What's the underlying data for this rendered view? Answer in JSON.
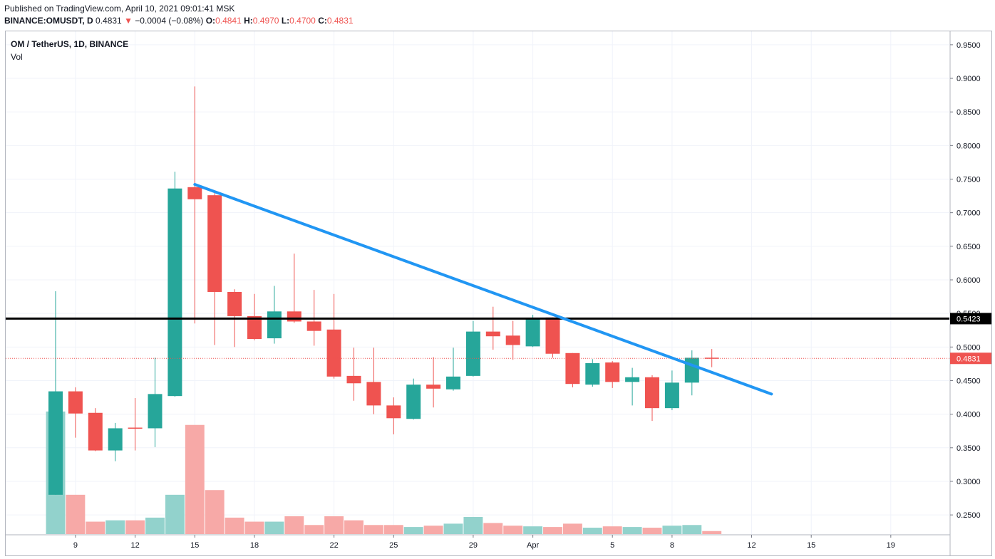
{
  "header": {
    "published": "Published on TradingView.com, April 10, 2021 09:01:41 MSK",
    "symbol_line": "BINANCE:OMUSDT, D",
    "last": "0.4831",
    "arrow": "▼",
    "change": "−0.0004 (−0.08%)",
    "o_label": "O:",
    "o_val": "0.4841",
    "h_label": "H:",
    "h_val": "0.4970",
    "l_label": "L:",
    "l_val": "0.4700",
    "c_label": "C:",
    "c_val": "0.4831"
  },
  "legend": {
    "title": "OM / TetherUS, 1D, BINANCE",
    "volume": "Vol"
  },
  "colors": {
    "up": "#26a69a",
    "down": "#ef5350",
    "vol_up": "#92d2cc",
    "vol_down": "#f7a9a7",
    "trendline": "#2196f3",
    "hline": "#000000",
    "grid": "#f0f3fa"
  },
  "chart_data": {
    "type": "candlestick",
    "price_axis_ticks": [
      "0.9500",
      "0.9000",
      "0.8500",
      "0.8000",
      "0.7500",
      "0.7000",
      "0.6500",
      "0.6000",
      "0.5500",
      "0.5000",
      "0.4500",
      "0.4000",
      "0.3500",
      "0.3000",
      "0.2500"
    ],
    "ylim": [
      0.2215,
      0.97
    ],
    "x_ticks": [
      {
        "label": "9",
        "i": 1
      },
      {
        "label": "12",
        "i": 4
      },
      {
        "label": "15",
        "i": 7
      },
      {
        "label": "18",
        "i": 10
      },
      {
        "label": "22",
        "i": 14
      },
      {
        "label": "25",
        "i": 17
      },
      {
        "label": "29",
        "i": 21
      },
      {
        "label": "Apr",
        "i": 24
      },
      {
        "label": "5",
        "i": 28
      },
      {
        "label": "8",
        "i": 31
      },
      {
        "label": "12",
        "i": 35
      },
      {
        "label": "15",
        "i": 38
      },
      {
        "label": "19",
        "i": 42
      }
    ],
    "candles": [
      {
        "o": 0.28,
        "h": 0.583,
        "l": 0.28,
        "c": 0.434,
        "v": 0.404
      },
      {
        "o": 0.434,
        "h": 0.44,
        "l": 0.365,
        "c": 0.401,
        "v": 0.28
      },
      {
        "o": 0.402,
        "h": 0.409,
        "l": 0.345,
        "c": 0.346,
        "v": 0.24
      },
      {
        "o": 0.346,
        "h": 0.387,
        "l": 0.33,
        "c": 0.379,
        "v": 0.242
      },
      {
        "o": 0.38,
        "h": 0.424,
        "l": 0.346,
        "c": 0.379,
        "v": 0.242
      },
      {
        "o": 0.379,
        "h": 0.484,
        "l": 0.351,
        "c": 0.43,
        "v": 0.246
      },
      {
        "o": 0.427,
        "h": 0.761,
        "l": 0.426,
        "c": 0.736,
        "v": 0.28
      },
      {
        "o": 0.738,
        "h": 0.888,
        "l": 0.535,
        "c": 0.72,
        "v": 0.384
      },
      {
        "o": 0.726,
        "h": 0.73,
        "l": 0.503,
        "c": 0.582,
        "v": 0.287
      },
      {
        "o": 0.582,
        "h": 0.586,
        "l": 0.5,
        "c": 0.546,
        "v": 0.246
      },
      {
        "o": 0.546,
        "h": 0.579,
        "l": 0.51,
        "c": 0.512,
        "v": 0.24
      },
      {
        "o": 0.513,
        "h": 0.591,
        "l": 0.505,
        "c": 0.553,
        "v": 0.24
      },
      {
        "o": 0.553,
        "h": 0.639,
        "l": 0.536,
        "c": 0.538,
        "v": 0.248
      },
      {
        "o": 0.538,
        "h": 0.585,
        "l": 0.502,
        "c": 0.524,
        "v": 0.235
      },
      {
        "o": 0.526,
        "h": 0.579,
        "l": 0.453,
        "c": 0.456,
        "v": 0.248
      },
      {
        "o": 0.457,
        "h": 0.499,
        "l": 0.42,
        "c": 0.446,
        "v": 0.242
      },
      {
        "o": 0.448,
        "h": 0.499,
        "l": 0.4,
        "c": 0.413,
        "v": 0.235
      },
      {
        "o": 0.413,
        "h": 0.425,
        "l": 0.37,
        "c": 0.394,
        "v": 0.235
      },
      {
        "o": 0.393,
        "h": 0.453,
        "l": 0.392,
        "c": 0.444,
        "v": 0.232
      },
      {
        "o": 0.444,
        "h": 0.485,
        "l": 0.41,
        "c": 0.438,
        "v": 0.234
      },
      {
        "o": 0.437,
        "h": 0.499,
        "l": 0.435,
        "c": 0.456,
        "v": 0.237
      },
      {
        "o": 0.457,
        "h": 0.539,
        "l": 0.456,
        "c": 0.523,
        "v": 0.247
      },
      {
        "o": 0.523,
        "h": 0.56,
        "l": 0.496,
        "c": 0.516,
        "v": 0.238
      },
      {
        "o": 0.517,
        "h": 0.539,
        "l": 0.481,
        "c": 0.503,
        "v": 0.234
      },
      {
        "o": 0.501,
        "h": 0.548,
        "l": 0.5,
        "c": 0.542,
        "v": 0.233
      },
      {
        "o": 0.544,
        "h": 0.544,
        "l": 0.484,
        "c": 0.49,
        "v": 0.232
      },
      {
        "o": 0.491,
        "h": 0.491,
        "l": 0.44,
        "c": 0.445,
        "v": 0.237
      },
      {
        "o": 0.444,
        "h": 0.482,
        "l": 0.441,
        "c": 0.476,
        "v": 0.231
      },
      {
        "o": 0.477,
        "h": 0.479,
        "l": 0.439,
        "c": 0.448,
        "v": 0.233
      },
      {
        "o": 0.448,
        "h": 0.469,
        "l": 0.413,
        "c": 0.455,
        "v": 0.232
      },
      {
        "o": 0.455,
        "h": 0.458,
        "l": 0.39,
        "c": 0.409,
        "v": 0.231
      },
      {
        "o": 0.409,
        "h": 0.465,
        "l": 0.406,
        "c": 0.447,
        "v": 0.234
      },
      {
        "o": 0.447,
        "h": 0.495,
        "l": 0.428,
        "c": 0.484,
        "v": 0.235
      },
      {
        "o": 0.4841,
        "h": 0.497,
        "l": 0.47,
        "c": 0.4831,
        "v": 0.226
      }
    ],
    "horizontal_line": {
      "value": 0.5423,
      "label": "0.5423"
    },
    "current_price": {
      "value": 0.4831,
      "label": "0.4831"
    },
    "trendline": {
      "start": {
        "i": 7,
        "price": 0.742
      },
      "end": {
        "i": 36,
        "price": 0.43
      }
    }
  }
}
